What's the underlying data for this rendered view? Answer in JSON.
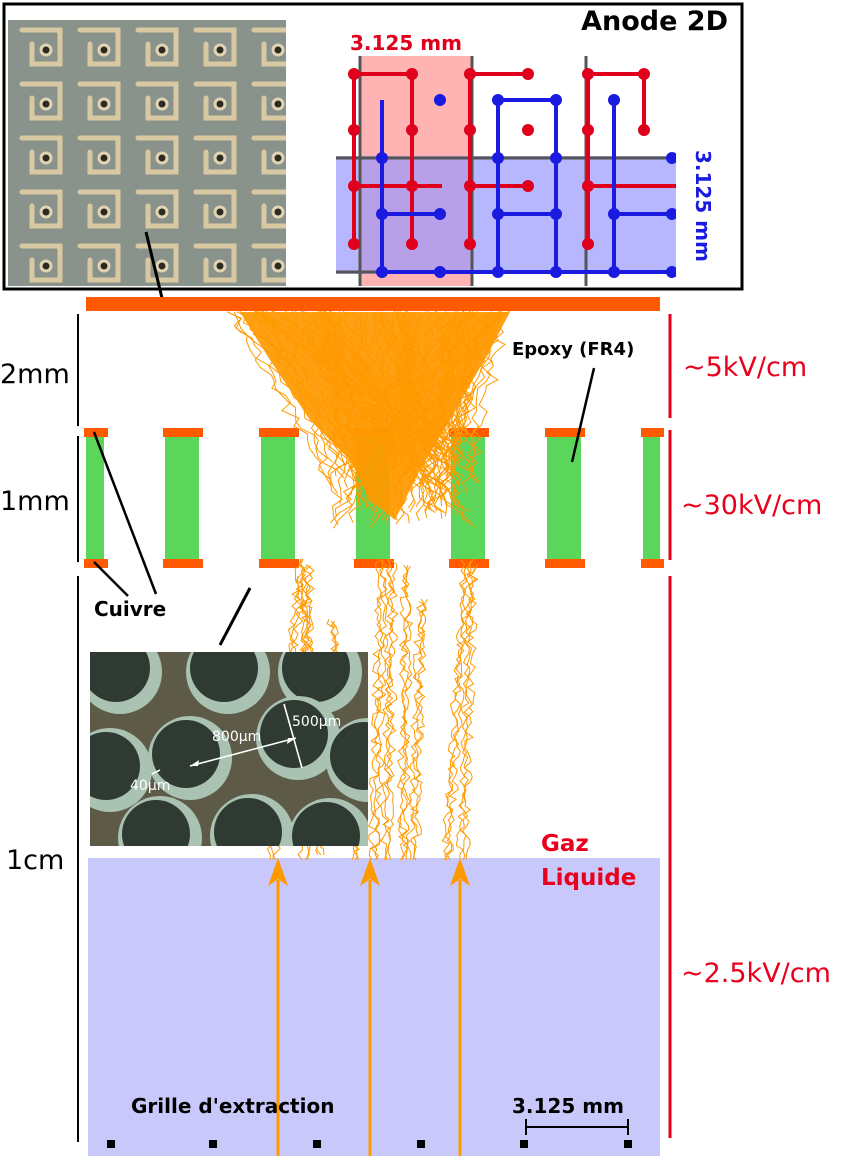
{
  "anode_box": {
    "title": "Anode 2D",
    "pitch_x": "3.125 mm",
    "pitch_y": "3.125 mm"
  },
  "gaps": {
    "amplification": {
      "label": "2mm",
      "field": "~5kV/cm"
    },
    "gem": {
      "label": "1mm",
      "field": "~30kV/cm"
    },
    "drift": {
      "label": "1cm",
      "field": "~2.5kV/cm"
    }
  },
  "labels": {
    "epoxy": "Epoxy (FR4)",
    "copper": "Cuivre",
    "gas": "Gaz",
    "liquid": "Liquide",
    "grid": "Grille d'extraction",
    "scale": "3.125 mm"
  },
  "micro_photo": {
    "hole_pitch": "800µm",
    "hole_diameter": "500µm",
    "rim": "40µm"
  },
  "colors": {
    "copper": "#ff5a00",
    "epoxy": "#5bd65b",
    "avalanche": "#ff9900",
    "liquid": "#c8c8fa",
    "field_text": "#e8001c",
    "x_strips": "#e0001c",
    "y_strips": "#1a1ae0",
    "pcb_photo": "#8a928c",
    "micro_photo": "#5d5a48"
  }
}
